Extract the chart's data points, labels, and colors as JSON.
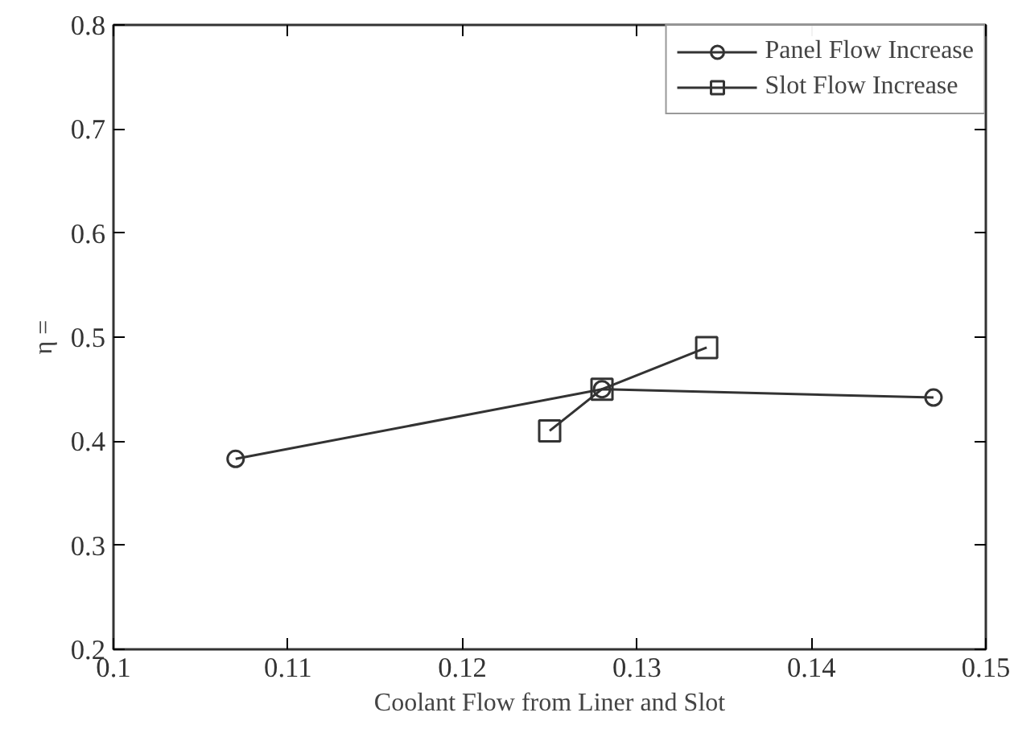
{
  "chart_data": {
    "type": "line",
    "xlabel": "Coolant Flow from Liner and Slot",
    "ylabel": "η =",
    "xlim": [
      0.1,
      0.15
    ],
    "xticks": [
      0.1,
      0.11,
      0.12,
      0.13,
      0.14,
      0.15
    ],
    "ylim": [
      0.2,
      0.8
    ],
    "yticks": [
      0.2,
      0.3,
      0.4,
      0.5,
      0.6,
      0.7,
      0.8
    ],
    "grid": false,
    "legend": "top right",
    "series": [
      {
        "name": "Panel Flow Increase",
        "color": "#333333",
        "marker": "circle",
        "x": [
          0.107,
          0.128,
          0.147
        ],
        "values": [
          0.383,
          0.45,
          0.442
        ]
      },
      {
        "name": "Slot Flow Increase",
        "color": "#333333",
        "marker": "square",
        "x": [
          0.125,
          0.128,
          0.134
        ],
        "values": [
          0.41,
          0.45,
          0.49
        ]
      }
    ]
  }
}
